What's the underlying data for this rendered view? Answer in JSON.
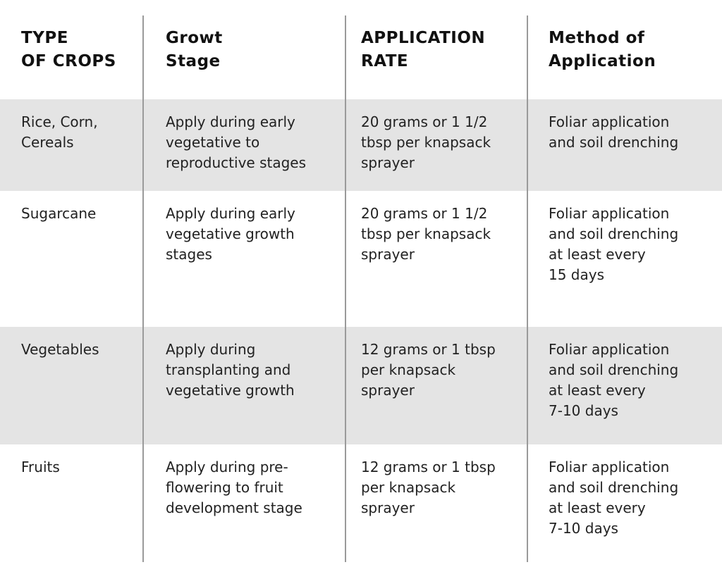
{
  "table": {
    "headers": [
      "TYPE\nOF CROPS",
      "Growt\nStage",
      "APPLICATION\nRATE",
      "Method of\nApplication"
    ],
    "rows": [
      {
        "crop": "Rice, Corn,\nCereals",
        "stage": "Apply during early\nvegetative to\nreproductive stages",
        "rate": "20 grams or 1 1/2\ntbsp per knapsack\nsprayer",
        "method": "Foliar application\nand soil drenching"
      },
      {
        "crop": "Sugarcane",
        "stage": "Apply during early\nvegetative growth\nstages",
        "rate": "20 grams or 1 1/2\ntbsp per knapsack\nsprayer",
        "method": "Foliar application\nand soil drenching\nat least every\n15 days"
      },
      {
        "crop": "Vegetables",
        "stage": "Apply during\ntransplanting and\nvegetative growth",
        "rate": "12 grams or 1 tbsp\nper knapsack\nsprayer",
        "method": "Foliar application\nand soil drenching\nat least every\n7-10 days"
      },
      {
        "crop": "Fruits",
        "stage": "Apply during pre-\nflowering to fruit\ndevelopment stage",
        "rate": "12 grams or 1 tbsp\nper knapsack\nsprayer",
        "method": "Foliar application\nand soil drenching\nat least every\n7-10 days"
      }
    ]
  },
  "colors": {
    "shaded_row": "#e4e4e4",
    "divider": "#9a9a9a",
    "text": "#1a1a1a"
  }
}
